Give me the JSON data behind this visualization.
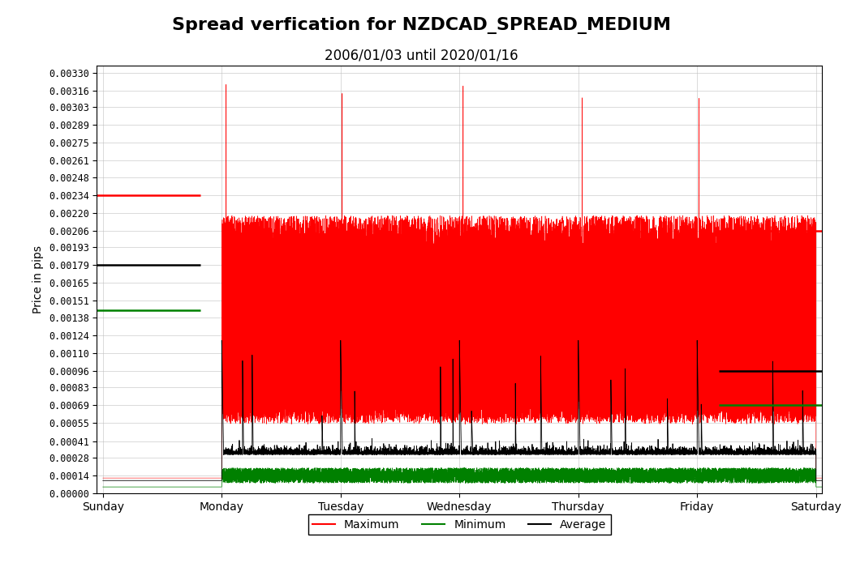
{
  "title": "Spread verfication for NZDCAD_SPREAD_MEDIUM",
  "subtitle": "2006/01/03 until 2020/01/16",
  "ylabel": "Price in pips",
  "xlabel": "",
  "background_color": "#ffffff",
  "title_fontsize": 16,
  "subtitle_fontsize": 12,
  "yticks": [
    0.0,
    0.00014,
    0.00028,
    0.00041,
    0.00055,
    0.00069,
    0.00083,
    0.00096,
    0.0011,
    0.00124,
    0.00138,
    0.00151,
    0.00165,
    0.00179,
    0.00193,
    0.00206,
    0.0022,
    0.00234,
    0.00248,
    0.00261,
    0.00275,
    0.00289,
    0.00303,
    0.00316,
    0.0033
  ],
  "xtick_labels": [
    "Sunday",
    "Monday",
    "Tuesday",
    "Wednesday",
    "Thursday",
    "Friday",
    "Saturday"
  ],
  "xtick_positions": [
    0,
    1,
    2,
    3,
    4,
    5,
    6
  ],
  "ylim": [
    0,
    0.00336
  ],
  "xlim": [
    -0.05,
    6.05
  ],
  "colors": {
    "maximum": "#ff0000",
    "minimum": "#008000",
    "average": "#000000"
  },
  "legend_labels": [
    "Maximum",
    "Minimum",
    "Average"
  ],
  "ref_lines": {
    "left_red_y": 0.00234,
    "left_red_x_start": -0.05,
    "left_red_x_end": 0.82,
    "left_black_y": 0.00179,
    "left_black_x_start": -0.05,
    "left_black_x_end": 0.82,
    "left_green_y": 0.00144,
    "left_green_x_start": -0.05,
    "left_green_x_end": 0.82,
    "right_red_y": 0.00206,
    "right_red_x_start": 5.18,
    "right_red_x_end": 6.05,
    "right_black_y": 0.00096,
    "right_black_x_start": 5.18,
    "right_black_x_end": 6.05,
    "right_green_y": 0.00069,
    "right_green_x_start": 5.18,
    "right_green_x_end": 6.05
  }
}
